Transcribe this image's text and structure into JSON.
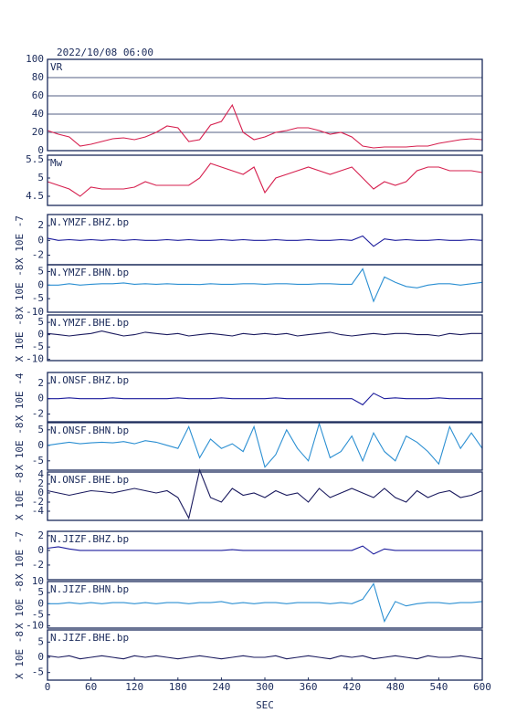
{
  "chart_data": [
    {
      "type": "line",
      "title": "2022/10/08 06:00",
      "label": "VR",
      "xlim": [
        0,
        600
      ],
      "ylim": [
        0,
        100
      ],
      "yticks": [
        0,
        20,
        40,
        60,
        80,
        100
      ],
      "grid": true,
      "color": "#d61f4e",
      "x": [
        0,
        15,
        30,
        45,
        60,
        75,
        90,
        105,
        120,
        135,
        150,
        165,
        180,
        195,
        210,
        225,
        240,
        255,
        270,
        285,
        300,
        315,
        330,
        345,
        360,
        375,
        390,
        405,
        420,
        435,
        450,
        465,
        480,
        495,
        510,
        525,
        540,
        555,
        570,
        585,
        600
      ],
      "values": [
        22,
        18,
        15,
        5,
        7,
        10,
        13,
        14,
        12,
        15,
        20,
        27,
        25,
        10,
        12,
        28,
        32,
        50,
        20,
        12,
        15,
        20,
        22,
        25,
        25,
        22,
        18,
        20,
        15,
        5,
        3,
        4,
        4,
        4,
        5,
        5,
        8,
        10,
        12,
        13,
        12
      ]
    },
    {
      "type": "line",
      "label": "Mw",
      "xlim": [
        0,
        600
      ],
      "ylim": [
        4.25,
        5.625
      ],
      "yticks": [
        4.5,
        5.0,
        5.5
      ],
      "grid": false,
      "color": "#d61f4e",
      "x": [
        0,
        15,
        30,
        45,
        60,
        75,
        90,
        105,
        120,
        135,
        150,
        165,
        180,
        195,
        210,
        225,
        240,
        255,
        270,
        285,
        300,
        315,
        330,
        345,
        360,
        375,
        390,
        405,
        420,
        435,
        450,
        465,
        480,
        495,
        510,
        525,
        540,
        555,
        570,
        585,
        600
      ],
      "values": [
        4.9,
        4.8,
        4.7,
        4.5,
        4.75,
        4.7,
        4.7,
        4.7,
        4.75,
        4.9,
        4.8,
        4.8,
        4.8,
        4.8,
        5.0,
        5.4,
        5.3,
        5.2,
        5.1,
        5.3,
        4.6,
        5.0,
        5.1,
        5.2,
        5.3,
        5.2,
        5.1,
        5.2,
        5.3,
        5.0,
        4.7,
        4.9,
        4.8,
        4.9,
        5.2,
        5.3,
        5.3,
        5.2,
        5.2,
        5.2,
        5.15
      ]
    },
    {
      "type": "line",
      "label": "N.YMZF.BHZ.bp",
      "ylabel": "X 10E -7",
      "xlim": [
        0,
        600
      ],
      "ylim": [
        -3.3,
        3.5
      ],
      "yticks": [
        -2,
        0,
        2
      ],
      "grid": false,
      "color": "#1c1c9c",
      "x": [
        0,
        15,
        30,
        45,
        60,
        75,
        90,
        105,
        120,
        135,
        150,
        165,
        180,
        195,
        210,
        225,
        240,
        255,
        270,
        285,
        300,
        315,
        330,
        345,
        360,
        375,
        390,
        405,
        420,
        435,
        450,
        465,
        480,
        495,
        510,
        525,
        540,
        555,
        570,
        585,
        600
      ],
      "values": [
        0.3,
        0,
        0.1,
        0,
        0.1,
        0,
        0.1,
        0,
        0.1,
        0,
        0,
        0.1,
        0,
        0.1,
        0,
        0,
        0.1,
        0,
        0.1,
        0,
        0,
        0.1,
        0,
        0,
        0.1,
        0,
        0,
        0.1,
        0,
        0.6,
        -0.8,
        0.2,
        0,
        0.1,
        0,
        0,
        0.1,
        0,
        0,
        0.1,
        0
      ]
    },
    {
      "type": "line",
      "label": "N.YMZF.BHN.bp",
      "ylabel": "X 10E -8",
      "xlim": [
        0,
        600
      ],
      "ylim": [
        -10,
        7.5
      ],
      "yticks": [
        -10,
        -5,
        0,
        5
      ],
      "grid": false,
      "color": "#2b8fd2",
      "x": [
        0,
        15,
        30,
        45,
        60,
        75,
        90,
        105,
        120,
        135,
        150,
        165,
        180,
        195,
        210,
        225,
        240,
        255,
        270,
        285,
        300,
        315,
        330,
        345,
        360,
        375,
        390,
        405,
        420,
        435,
        450,
        465,
        480,
        495,
        510,
        525,
        540,
        555,
        570,
        585,
        600
      ],
      "values": [
        0,
        0,
        0.5,
        0,
        0.3,
        0.5,
        0.5,
        0.8,
        0.3,
        0.5,
        0.3,
        0.5,
        0.3,
        0.3,
        0.2,
        0.5,
        0.3,
        0.3,
        0.5,
        0.5,
        0.3,
        0.5,
        0.5,
        0.3,
        0.3,
        0.5,
        0.5,
        0.3,
        0.3,
        6,
        -6,
        3,
        1,
        -0.5,
        -1,
        0,
        0.5,
        0.5,
        0,
        0.5,
        1
      ]
    },
    {
      "type": "line",
      "label": "N.YMZF.BHE.bp",
      "ylabel": "X 10E -8",
      "xlim": [
        0,
        600
      ],
      "ylim": [
        -10.5,
        8
      ],
      "yticks": [
        -10,
        -5,
        0,
        5
      ],
      "grid": false,
      "color": "#1a1a5e",
      "x": [
        0,
        15,
        30,
        45,
        60,
        75,
        90,
        105,
        120,
        135,
        150,
        165,
        180,
        195,
        210,
        225,
        240,
        255,
        270,
        285,
        300,
        315,
        330,
        345,
        360,
        375,
        390,
        405,
        420,
        435,
        450,
        465,
        480,
        495,
        510,
        525,
        540,
        555,
        570,
        585,
        600
      ],
      "values": [
        0.5,
        0,
        -0.5,
        0,
        0.5,
        1.5,
        0.5,
        -0.5,
        0,
        1,
        0.5,
        0,
        0.5,
        -0.5,
        0,
        0.5,
        0,
        -0.5,
        0.5,
        0,
        0.5,
        0,
        0.5,
        -0.5,
        0,
        0.5,
        1,
        0,
        -0.5,
        0,
        0.5,
        0,
        0.5,
        0.5,
        0,
        0,
        -0.5,
        0.5,
        0,
        0.5,
        0.5
      ]
    },
    {
      "type": "line",
      "label": "N.ONSF.BHZ.bp",
      "ylabel": "X 10E -4",
      "xlim": [
        0,
        600
      ],
      "ylim": [
        -3,
        3.4
      ],
      "yticks": [
        -2,
        0,
        2
      ],
      "grid": false,
      "color": "#1c1c9c",
      "x": [
        0,
        15,
        30,
        45,
        60,
        75,
        90,
        105,
        120,
        135,
        150,
        165,
        180,
        195,
        210,
        225,
        240,
        255,
        270,
        285,
        300,
        315,
        330,
        345,
        360,
        375,
        390,
        405,
        420,
        435,
        450,
        465,
        480,
        495,
        510,
        525,
        540,
        555,
        570,
        585,
        600
      ],
      "values": [
        0,
        0,
        0.1,
        0,
        0,
        0,
        0.1,
        0,
        0,
        0,
        0,
        0,
        0.1,
        0,
        0,
        0,
        0.1,
        0,
        0,
        0,
        0,
        0.1,
        0,
        0,
        0,
        0,
        0,
        0,
        0,
        -0.8,
        0.7,
        0,
        0.1,
        0,
        0,
        0,
        0.1,
        0,
        0,
        0,
        0
      ]
    },
    {
      "type": "line",
      "label": "N.ONSF.BHN.bp",
      "ylabel": "X 10E -8",
      "xlim": [
        0,
        600
      ],
      "ylim": [
        -8,
        7.3
      ],
      "yticks": [
        -5,
        0,
        5
      ],
      "grid": false,
      "color": "#2b8fd2",
      "x": [
        0,
        15,
        30,
        45,
        60,
        75,
        90,
        105,
        120,
        135,
        150,
        165,
        180,
        195,
        210,
        225,
        240,
        255,
        270,
        285,
        300,
        315,
        330,
        345,
        360,
        375,
        390,
        405,
        420,
        435,
        450,
        465,
        480,
        495,
        510,
        525,
        540,
        555,
        570,
        585,
        600
      ],
      "values": [
        0,
        0.5,
        1,
        0.5,
        0.8,
        1,
        0.8,
        1.2,
        0.5,
        1.5,
        1,
        0,
        -1,
        6,
        -4,
        2,
        -1,
        0.5,
        -2,
        6,
        -7,
        -3,
        5,
        -1,
        -5,
        7,
        -4,
        -2,
        3,
        -5,
        4,
        -2,
        -5,
        3,
        1,
        -2,
        -6,
        6,
        -1,
        4,
        -1
      ]
    },
    {
      "type": "line",
      "label": "N.ONSF.BHE.bp",
      "ylabel": "X 10E -8",
      "xlim": [
        0,
        600
      ],
      "ylim": [
        -6,
        4.6
      ],
      "yticks": [
        -4,
        -2,
        0,
        2,
        4
      ],
      "grid": false,
      "color": "#1a1a5e",
      "x": [
        0,
        15,
        30,
        45,
        60,
        75,
        90,
        105,
        120,
        135,
        150,
        165,
        180,
        195,
        210,
        225,
        240,
        255,
        270,
        285,
        300,
        315,
        330,
        345,
        360,
        375,
        390,
        405,
        420,
        435,
        450,
        465,
        480,
        495,
        510,
        525,
        540,
        555,
        570,
        585,
        600
      ],
      "values": [
        0.5,
        0,
        -0.5,
        0,
        0.5,
        0.3,
        0,
        0.5,
        1,
        0.5,
        0,
        0.5,
        -1,
        -5.5,
        5,
        -1,
        -2,
        1,
        -0.5,
        0,
        -1,
        0.5,
        -0.5,
        0,
        -2,
        1,
        -1,
        0,
        1,
        0,
        -1,
        1,
        -1,
        -2,
        0.5,
        -1,
        0,
        0.5,
        -1,
        -0.5,
        0.5
      ]
    },
    {
      "type": "line",
      "label": "N.JIZF.BHZ.bp",
      "ylabel": "X 10E -7",
      "xlim": [
        0,
        600
      ],
      "ylim": [
        -4,
        2.6
      ],
      "yticks": [
        -2,
        0,
        2
      ],
      "grid": false,
      "color": "#1c1c9c",
      "x": [
        0,
        15,
        30,
        45,
        60,
        75,
        90,
        105,
        120,
        135,
        150,
        165,
        180,
        195,
        210,
        225,
        240,
        255,
        270,
        285,
        300,
        315,
        330,
        345,
        360,
        375,
        390,
        405,
        420,
        435,
        450,
        465,
        480,
        495,
        510,
        525,
        540,
        555,
        570,
        585,
        600
      ],
      "values": [
        0.3,
        0.5,
        0.2,
        0,
        0,
        0,
        0,
        0,
        0,
        0,
        0,
        0,
        0,
        0,
        0,
        0,
        0,
        0.1,
        0,
        0,
        0,
        0,
        0,
        0,
        0,
        0,
        0,
        0,
        0,
        0.6,
        -0.5,
        0.2,
        0,
        0,
        0,
        0,
        0,
        0,
        0,
        0,
        0
      ]
    },
    {
      "type": "line",
      "label": "N.JIZF.BHN.bp",
      "ylabel": "X 10E -8",
      "xlim": [
        0,
        600
      ],
      "ylim": [
        -11,
        10
      ],
      "yticks": [
        -10,
        -5,
        0,
        5,
        10
      ],
      "grid": false,
      "color": "#2b8fd2",
      "x": [
        0,
        15,
        30,
        45,
        60,
        75,
        90,
        105,
        120,
        135,
        150,
        165,
        180,
        195,
        210,
        225,
        240,
        255,
        270,
        285,
        300,
        315,
        330,
        345,
        360,
        375,
        390,
        405,
        420,
        435,
        450,
        465,
        480,
        495,
        510,
        525,
        540,
        555,
        570,
        585,
        600
      ],
      "values": [
        0,
        0,
        0.5,
        0,
        0.5,
        0,
        0.5,
        0.5,
        0,
        0.5,
        0,
        0.5,
        0.5,
        0,
        0.5,
        0.5,
        1,
        0,
        0.5,
        0,
        0.5,
        0.5,
        0,
        0.5,
        0.5,
        0.5,
        0,
        0.5,
        0,
        2,
        9,
        -8,
        1,
        -1,
        0,
        0.5,
        0.5,
        0,
        0.5,
        0.5,
        1
      ]
    },
    {
      "type": "line",
      "label": "N.JIZF.BHE.bp",
      "ylabel": "X 10E -8",
      "xlabel": "SEC",
      "xlim": [
        0,
        600
      ],
      "ylim": [
        -7.5,
        9
      ],
      "yticks": [
        -5,
        0,
        5
      ],
      "xticks": [
        0,
        60,
        120,
        180,
        240,
        300,
        360,
        420,
        480,
        540,
        600
      ],
      "grid": false,
      "color": "#1a1a5e",
      "x": [
        0,
        15,
        30,
        45,
        60,
        75,
        90,
        105,
        120,
        135,
        150,
        165,
        180,
        195,
        210,
        225,
        240,
        255,
        270,
        285,
        300,
        315,
        330,
        345,
        360,
        375,
        390,
        405,
        420,
        435,
        450,
        465,
        480,
        495,
        510,
        525,
        540,
        555,
        570,
        585,
        600
      ],
      "values": [
        0.5,
        0,
        0.5,
        -0.5,
        0,
        0.5,
        0,
        -0.5,
        0.5,
        0,
        0.5,
        0,
        -0.5,
        0,
        0.5,
        0,
        -0.5,
        0,
        0.5,
        0,
        0,
        0.5,
        -0.5,
        0,
        0.5,
        0,
        -0.5,
        0.5,
        0,
        0.5,
        -0.5,
        0,
        0.5,
        0,
        -0.5,
        0.5,
        0,
        0,
        0.5,
        0,
        -0.5
      ]
    }
  ]
}
